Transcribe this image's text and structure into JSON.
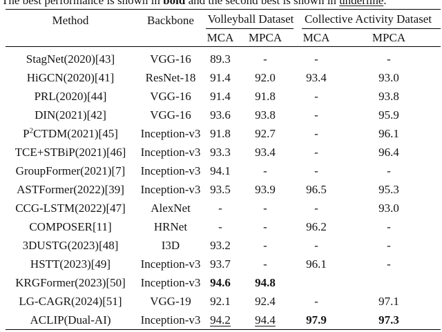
{
  "caption": {
    "part1": "The best performance is shown in ",
    "bold_word": "bold",
    "part2": " and the second best is shown in ",
    "underline_word": "underline",
    "part3": "."
  },
  "table": {
    "col_method": "Method",
    "col_backbone": "Backbone",
    "groups": [
      {
        "label": "Volleyball Dataset",
        "sub": [
          "MCA",
          "MPCA"
        ]
      },
      {
        "label": "Collective Activity Dataset",
        "sub": [
          "MCA",
          "MPCA"
        ]
      }
    ],
    "rows": [
      {
        "method": "StagNet(2020)[43]",
        "backbone": "VGG-16",
        "cells": [
          {
            "t": "89.3"
          },
          {
            "t": "-"
          },
          {
            "t": "-"
          },
          {
            "t": "-"
          }
        ]
      },
      {
        "method": "HiGCN(2020)[41]",
        "backbone": "ResNet-18",
        "cells": [
          {
            "t": "91.4"
          },
          {
            "t": "92.0"
          },
          {
            "t": "93.4"
          },
          {
            "t": "93.0"
          }
        ]
      },
      {
        "method": "PRL(2020)[44]",
        "backbone": "VGG-16",
        "cells": [
          {
            "t": "91.4"
          },
          {
            "t": "91.8"
          },
          {
            "t": "-"
          },
          {
            "t": "93.8"
          }
        ]
      },
      {
        "method": "DIN(2021)[42]",
        "backbone": "VGG-16",
        "cells": [
          {
            "t": "93.6"
          },
          {
            "t": "93.8"
          },
          {
            "t": "-"
          },
          {
            "t": "95.9"
          }
        ]
      },
      {
        "method": "P^2CTDM(2021)[45]",
        "backbone": "Inception-v3",
        "cells": [
          {
            "t": "91.8"
          },
          {
            "t": "92.7"
          },
          {
            "t": "-"
          },
          {
            "t": "96.1"
          }
        ]
      },
      {
        "method": "TCE+STBiP(2021)[46]",
        "backbone": "Inception-v3",
        "cells": [
          {
            "t": "93.3"
          },
          {
            "t": "93.4"
          },
          {
            "t": "-"
          },
          {
            "t": "96.4"
          }
        ]
      },
      {
        "method": "GroupFormer(2021)[7]",
        "backbone": "Inception-v3",
        "cells": [
          {
            "t": "94.1"
          },
          {
            "t": "-"
          },
          {
            "t": "-"
          },
          {
            "t": "-"
          }
        ]
      },
      {
        "method": "ASTFormer(2022)[39]",
        "backbone": "Inception-v3",
        "cells": [
          {
            "t": "93.5"
          },
          {
            "t": "93.9"
          },
          {
            "t": "96.5"
          },
          {
            "t": "95.3"
          }
        ]
      },
      {
        "method": "CCG-LSTM(2022)[47]",
        "backbone": "AlexNet",
        "cells": [
          {
            "t": "-"
          },
          {
            "t": "-"
          },
          {
            "t": "-"
          },
          {
            "t": "93.0"
          }
        ]
      },
      {
        "method": "COMPOSER[11]",
        "backbone": "HRNet",
        "cells": [
          {
            "t": "-"
          },
          {
            "t": "-"
          },
          {
            "t": "96.2"
          },
          {
            "t": "-"
          }
        ]
      },
      {
        "method": "3DUSTG(2023)[48]",
        "backbone": "I3D",
        "cells": [
          {
            "t": "93.2"
          },
          {
            "t": "-"
          },
          {
            "t": "-"
          },
          {
            "t": "-"
          }
        ]
      },
      {
        "method": "HSTT(2023)[49]",
        "backbone": "Inception-v3",
        "cells": [
          {
            "t": "93.7"
          },
          {
            "t": "-"
          },
          {
            "t": "96.1"
          },
          {
            "t": "-"
          }
        ]
      },
      {
        "method": "KRGFormer(2023)[50]",
        "backbone": "Inception-v3",
        "cells": [
          {
            "t": "94.6",
            "s": "b"
          },
          {
            "t": "94.8",
            "s": "b"
          },
          {
            "t": ""
          },
          {
            "t": ""
          }
        ]
      },
      {
        "method": "LG-CAGR(2024)[51]",
        "backbone": "VGG-19",
        "cells": [
          {
            "t": "92.1"
          },
          {
            "t": "92.4"
          },
          {
            "t": "-"
          },
          {
            "t": "97.1"
          }
        ]
      },
      {
        "method": "ACLIP(Dual-AI)",
        "backbone": "Inception-v3",
        "cells": [
          {
            "t": "94.2",
            "s": "u"
          },
          {
            "t": "94.4",
            "s": "u"
          },
          {
            "t": "97.9",
            "s": "b"
          },
          {
            "t": "97.3",
            "s": "b"
          }
        ]
      }
    ]
  },
  "colors": {
    "text": "#141414",
    "rule": "#000000",
    "background": "#ffffff"
  }
}
